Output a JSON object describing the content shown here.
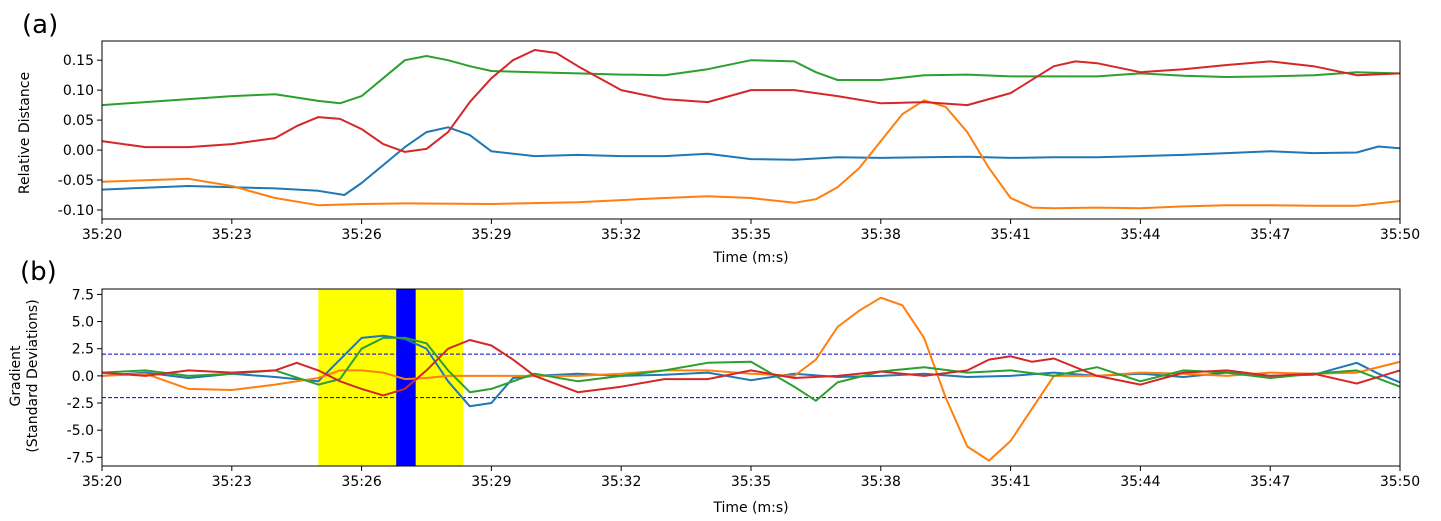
{
  "panels": [
    {
      "label": "(a)"
    },
    {
      "label": "(b)"
    }
  ],
  "colors": {
    "blue": "#1f77b4",
    "orange": "#ff7f0e",
    "green": "#2ca02c",
    "red": "#d62728",
    "highlight_yellow": "#ffff00",
    "highlight_blue": "#0000ff",
    "threshold": "#0000cc"
  },
  "chart_data": [
    {
      "type": "line",
      "panel": "(a)",
      "title": "",
      "xlabel": "Time (m:s)",
      "ylabel": "Relative Distance",
      "xlim": [
        1220,
        1250
      ],
      "ylim": [
        -0.115,
        0.182
      ],
      "xticks": [
        1220,
        1223,
        1226,
        1229,
        1232,
        1235,
        1238,
        1241,
        1244,
        1247,
        1250
      ],
      "xtick_labels": [
        "35:20",
        "35:23",
        "35:26",
        "35:29",
        "35:32",
        "35:35",
        "35:38",
        "35:41",
        "35:44",
        "35:47",
        "35:50"
      ],
      "yticks": [
        -0.1,
        -0.05,
        0.0,
        0.05,
        0.1,
        0.15
      ],
      "ytick_labels": [
        "-0.10",
        "-0.05",
        "0.00",
        "0.05",
        "0.10",
        "0.15"
      ],
      "series": [
        {
          "name": "blue",
          "color": "#1f77b4",
          "x": [
            1220,
            1222,
            1224,
            1225,
            1225.6,
            1226,
            1226.5,
            1227,
            1227.5,
            1228,
            1228.5,
            1229,
            1230,
            1231,
            1232,
            1233,
            1234,
            1235,
            1236,
            1237,
            1238,
            1239,
            1240,
            1241,
            1242,
            1243,
            1244,
            1245,
            1246,
            1247,
            1248,
            1249,
            1249.5,
            1250
          ],
          "y": [
            -0.066,
            -0.06,
            -0.064,
            -0.068,
            -0.075,
            -0.055,
            -0.025,
            0.005,
            0.03,
            0.038,
            0.025,
            -0.002,
            -0.01,
            -0.008,
            -0.01,
            -0.01,
            -0.006,
            -0.015,
            -0.016,
            -0.012,
            -0.013,
            -0.012,
            -0.011,
            -0.013,
            -0.012,
            -0.012,
            -0.01,
            -0.008,
            -0.005,
            -0.002,
            -0.005,
            -0.004,
            0.006,
            0.003
          ]
        },
        {
          "name": "orange",
          "color": "#ff7f0e",
          "x": [
            1220,
            1222,
            1223,
            1224,
            1225,
            1226,
            1227,
            1229,
            1231,
            1233,
            1234,
            1235,
            1236,
            1236.5,
            1237,
            1237.5,
            1238,
            1238.5,
            1239,
            1239.5,
            1240,
            1240.5,
            1241,
            1241.5,
            1242,
            1243,
            1244,
            1245,
            1246,
            1247,
            1248,
            1249,
            1250
          ],
          "y": [
            -0.053,
            -0.048,
            -0.06,
            -0.08,
            -0.092,
            -0.09,
            -0.089,
            -0.09,
            -0.087,
            -0.08,
            -0.077,
            -0.08,
            -0.088,
            -0.082,
            -0.062,
            -0.03,
            0.015,
            0.06,
            0.083,
            0.072,
            0.03,
            -0.03,
            -0.08,
            -0.096,
            -0.097,
            -0.096,
            -0.097,
            -0.094,
            -0.092,
            -0.092,
            -0.093,
            -0.093,
            -0.085
          ]
        },
        {
          "name": "green",
          "color": "#2ca02c",
          "x": [
            1220,
            1221,
            1222,
            1223,
            1224,
            1225,
            1225.5,
            1226,
            1226.5,
            1227,
            1227.5,
            1228,
            1228.5,
            1229,
            1230,
            1231,
            1232,
            1233,
            1234,
            1235,
            1236,
            1236.5,
            1237,
            1238,
            1239,
            1240,
            1241,
            1242,
            1243,
            1244,
            1245,
            1246,
            1247,
            1248,
            1249,
            1250
          ],
          "y": [
            0.075,
            0.08,
            0.085,
            0.09,
            0.093,
            0.082,
            0.078,
            0.09,
            0.12,
            0.15,
            0.157,
            0.15,
            0.14,
            0.132,
            0.13,
            0.128,
            0.126,
            0.125,
            0.135,
            0.15,
            0.148,
            0.13,
            0.117,
            0.117,
            0.125,
            0.126,
            0.123,
            0.123,
            0.123,
            0.128,
            0.124,
            0.122,
            0.123,
            0.125,
            0.13,
            0.128
          ]
        },
        {
          "name": "red",
          "color": "#d62728",
          "x": [
            1220,
            1221,
            1222,
            1223,
            1224,
            1224.5,
            1225,
            1225.5,
            1226,
            1226.5,
            1227,
            1227.5,
            1228,
            1228.5,
            1229,
            1229.5,
            1230,
            1230.5,
            1231,
            1232,
            1233,
            1234,
            1235,
            1236,
            1237,
            1238,
            1239,
            1240,
            1241,
            1242,
            1242.5,
            1243,
            1244,
            1245,
            1246,
            1247,
            1248,
            1249,
            1250
          ],
          "y": [
            0.015,
            0.005,
            0.005,
            0.01,
            0.02,
            0.04,
            0.055,
            0.052,
            0.035,
            0.01,
            -0.003,
            0.002,
            0.03,
            0.08,
            0.12,
            0.15,
            0.167,
            0.162,
            0.14,
            0.1,
            0.085,
            0.08,
            0.1,
            0.1,
            0.09,
            0.078,
            0.08,
            0.075,
            0.095,
            0.14,
            0.148,
            0.145,
            0.13,
            0.135,
            0.142,
            0.148,
            0.14,
            0.125,
            0.128
          ]
        }
      ]
    },
    {
      "type": "line",
      "panel": "(b)",
      "title": "",
      "xlabel": "Time (m:s)",
      "ylabel": "Gradient\n(Standard Deviations)",
      "ylabel_lines": [
        "Gradient",
        "(Standard Deviations)"
      ],
      "xlim": [
        1220,
        1250
      ],
      "ylim": [
        -8.3,
        8.0
      ],
      "xticks": [
        1220,
        1223,
        1226,
        1229,
        1232,
        1235,
        1238,
        1241,
        1244,
        1247,
        1250
      ],
      "xtick_labels": [
        "35:20",
        "35:23",
        "35:26",
        "35:29",
        "35:32",
        "35:35",
        "35:38",
        "35:41",
        "35:44",
        "35:47",
        "35:50"
      ],
      "yticks": [
        -7.5,
        -5.0,
        -2.5,
        0.0,
        2.5,
        5.0,
        7.5
      ],
      "ytick_labels": [
        "-7.5",
        "-5.0",
        "-2.5",
        "0.0",
        "2.5",
        "5.0",
        "7.5"
      ],
      "thresholds": [
        2.0,
        -2.0
      ],
      "highlight_spans": [
        {
          "x0": 1225.0,
          "x1": 1228.35,
          "color": "#ffff00"
        },
        {
          "x0": 1226.8,
          "x1": 1227.25,
          "color": "#0000ff"
        }
      ],
      "series": [
        {
          "name": "blue",
          "color": "#1f77b4",
          "x": [
            1220,
            1221,
            1222,
            1223,
            1224,
            1225,
            1225.5,
            1226,
            1226.5,
            1227,
            1227.5,
            1228,
            1228.5,
            1229,
            1229.5,
            1230,
            1231,
            1232,
            1233,
            1234,
            1235,
            1236,
            1237,
            1238,
            1239,
            1240,
            1241,
            1242,
            1243,
            1244,
            1245,
            1246,
            1247,
            1248,
            1249,
            1249.5,
            1250
          ],
          "y": [
            0.0,
            0.3,
            -0.2,
            0.2,
            -0.1,
            -0.5,
            1.5,
            3.5,
            3.7,
            3.4,
            2.5,
            -0.5,
            -2.8,
            -2.5,
            -0.2,
            0.0,
            0.2,
            0.0,
            0.1,
            0.3,
            -0.4,
            0.2,
            -0.1,
            0.0,
            0.2,
            -0.1,
            0.0,
            0.3,
            0.0,
            0.2,
            -0.1,
            0.3,
            0.0,
            0.1,
            1.2,
            0.2,
            -0.6
          ]
        },
        {
          "name": "orange",
          "color": "#ff7f0e",
          "x": [
            1220,
            1221,
            1222,
            1223,
            1224,
            1225,
            1225.5,
            1226,
            1226.5,
            1227,
            1227.5,
            1228,
            1229,
            1230,
            1231,
            1232,
            1233,
            1234,
            1235,
            1236,
            1236.5,
            1237,
            1237.5,
            1238,
            1238.5,
            1239,
            1239.5,
            1240,
            1240.5,
            1241,
            1241.5,
            1242,
            1243,
            1244,
            1245,
            1246,
            1247,
            1248,
            1249,
            1250
          ],
          "y": [
            0.0,
            0.2,
            -1.2,
            -1.3,
            -0.8,
            -0.2,
            0.5,
            0.5,
            0.3,
            -0.3,
            -0.2,
            0.0,
            0.0,
            0.0,
            0.0,
            0.2,
            0.5,
            0.5,
            0.2,
            0.0,
            1.5,
            4.5,
            6.0,
            7.2,
            6.5,
            3.5,
            -2.0,
            -6.5,
            -7.8,
            -6.0,
            -3.0,
            0.0,
            0.0,
            0.3,
            0.2,
            0.0,
            0.3,
            0.2,
            0.3,
            1.3
          ]
        },
        {
          "name": "green",
          "color": "#2ca02c",
          "x": [
            1220,
            1221,
            1222,
            1223,
            1224,
            1225,
            1225.5,
            1226,
            1226.5,
            1227,
            1227.5,
            1228,
            1228.5,
            1229,
            1230,
            1231,
            1232,
            1233,
            1234,
            1235,
            1236,
            1236.5,
            1237,
            1238,
            1239,
            1240,
            1241,
            1242,
            1243,
            1244,
            1245,
            1246,
            1247,
            1248,
            1249,
            1250
          ],
          "y": [
            0.3,
            0.5,
            0.0,
            0.2,
            0.5,
            -0.8,
            -0.3,
            2.5,
            3.5,
            3.5,
            3.0,
            0.5,
            -1.5,
            -1.2,
            0.2,
            -0.5,
            0.0,
            0.5,
            1.2,
            1.3,
            -1.0,
            -2.3,
            -0.6,
            0.4,
            0.8,
            0.3,
            0.5,
            0.0,
            0.8,
            -0.5,
            0.5,
            0.3,
            -0.2,
            0.2,
            0.5,
            -1.0
          ]
        },
        {
          "name": "red",
          "color": "#d62728",
          "x": [
            1220,
            1221,
            1222,
            1223,
            1224,
            1224.5,
            1225,
            1225.5,
            1226,
            1226.5,
            1227,
            1227.5,
            1228,
            1228.5,
            1229,
            1229.5,
            1230,
            1231,
            1232,
            1233,
            1234,
            1235,
            1236,
            1237,
            1238,
            1239,
            1240,
            1240.5,
            1241,
            1241.5,
            1242,
            1243,
            1244,
            1245,
            1246,
            1247,
            1248,
            1249,
            1250
          ],
          "y": [
            0.3,
            0.0,
            0.5,
            0.3,
            0.5,
            1.2,
            0.5,
            -0.5,
            -1.2,
            -1.8,
            -1.2,
            0.5,
            2.5,
            3.3,
            2.8,
            1.5,
            0.0,
            -1.5,
            -1.0,
            -0.3,
            -0.3,
            0.5,
            -0.2,
            0.0,
            0.4,
            0.0,
            0.5,
            1.5,
            1.8,
            1.3,
            1.6,
            0.0,
            -0.8,
            0.3,
            0.5,
            0.0,
            0.2,
            -0.7,
            0.5
          ]
        }
      ]
    }
  ]
}
